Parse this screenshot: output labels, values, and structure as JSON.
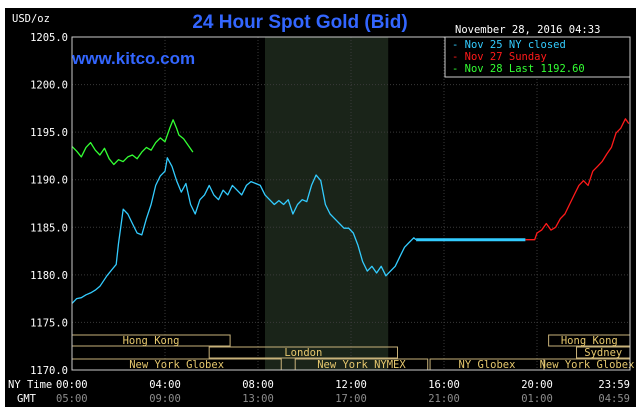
{
  "chart_data": {
    "type": "line",
    "title": "24 Hour Spot Gold (Bid)",
    "brand": "www.kitco.com",
    "units_label": "USD/oz",
    "timestamp": "November 28, 2016 04:33",
    "ylim": [
      1170,
      1205
    ],
    "y_ticks": [
      "1205.0",
      "1200.0",
      "1195.0",
      "1190.0",
      "1185.0",
      "1180.0",
      "1175.0",
      "1170.0"
    ],
    "x_tick_labels_ny": [
      "00:00",
      "04:00",
      "08:00",
      "12:00",
      "16:00",
      "20:00",
      "23:59"
    ],
    "x_tick_labels_gmt": [
      "05:00",
      "09:00",
      "13:00",
      "17:00",
      "21:00",
      "01:00",
      "04:59"
    ],
    "x_axis_ny_label": "NY Time",
    "x_axis_gmt_label": "GMT",
    "xlim_hours": [
      0,
      24
    ],
    "shaded_session_hours": [
      8.3,
      13.6
    ],
    "legend": [
      {
        "label": "Nov 25 NY closed",
        "color": "#33ccff"
      },
      {
        "label": "Nov 27 Sunday",
        "color": "#ff1a1a"
      },
      {
        "label": "Nov 28 Last 1192.60",
        "color": "#33ff33"
      }
    ],
    "series": [
      {
        "key": "green",
        "color": "#33ff33",
        "points": [
          [
            0.0,
            1193.5
          ],
          [
            0.2,
            1193.0
          ],
          [
            0.4,
            1192.4
          ],
          [
            0.6,
            1193.4
          ],
          [
            0.8,
            1193.9
          ],
          [
            1.0,
            1193.1
          ],
          [
            1.2,
            1192.6
          ],
          [
            1.4,
            1193.3
          ],
          [
            1.6,
            1192.2
          ],
          [
            1.8,
            1191.6
          ],
          [
            2.0,
            1192.1
          ],
          [
            2.2,
            1191.9
          ],
          [
            2.4,
            1192.4
          ],
          [
            2.6,
            1192.6
          ],
          [
            2.8,
            1192.2
          ],
          [
            3.0,
            1192.9
          ],
          [
            3.2,
            1193.4
          ],
          [
            3.4,
            1193.1
          ],
          [
            3.6,
            1193.9
          ],
          [
            3.8,
            1194.4
          ],
          [
            4.0,
            1194.0
          ],
          [
            4.2,
            1195.4
          ],
          [
            4.35,
            1196.3
          ],
          [
            4.5,
            1195.4
          ],
          [
            4.6,
            1194.7
          ],
          [
            4.8,
            1194.3
          ],
          [
            5.0,
            1193.6
          ],
          [
            5.2,
            1192.9
          ]
        ]
      },
      {
        "key": "blue",
        "color": "#33ccff",
        "points": [
          [
            0.0,
            1177.0
          ],
          [
            0.2,
            1177.5
          ],
          [
            0.4,
            1177.6
          ],
          [
            0.6,
            1177.9
          ],
          [
            0.8,
            1178.1
          ],
          [
            1.0,
            1178.4
          ],
          [
            1.2,
            1178.8
          ],
          [
            1.5,
            1179.9
          ],
          [
            1.7,
            1180.5
          ],
          [
            1.9,
            1181.1
          ],
          [
            2.0,
            1183.3
          ],
          [
            2.2,
            1186.9
          ],
          [
            2.4,
            1186.4
          ],
          [
            2.6,
            1185.4
          ],
          [
            2.8,
            1184.4
          ],
          [
            3.0,
            1184.2
          ],
          [
            3.2,
            1185.9
          ],
          [
            3.4,
            1187.4
          ],
          [
            3.6,
            1189.4
          ],
          [
            3.8,
            1190.4
          ],
          [
            4.0,
            1190.9
          ],
          [
            4.1,
            1192.3
          ],
          [
            4.3,
            1191.4
          ],
          [
            4.5,
            1189.9
          ],
          [
            4.7,
            1188.7
          ],
          [
            4.9,
            1189.6
          ],
          [
            5.1,
            1187.4
          ],
          [
            5.3,
            1186.4
          ],
          [
            5.5,
            1187.9
          ],
          [
            5.7,
            1188.4
          ],
          [
            5.9,
            1189.4
          ],
          [
            6.1,
            1188.4
          ],
          [
            6.3,
            1187.9
          ],
          [
            6.5,
            1188.9
          ],
          [
            6.7,
            1188.4
          ],
          [
            6.9,
            1189.4
          ],
          [
            7.1,
            1188.9
          ],
          [
            7.3,
            1188.4
          ],
          [
            7.5,
            1189.4
          ],
          [
            7.7,
            1189.8
          ],
          [
            7.9,
            1189.6
          ],
          [
            8.1,
            1189.4
          ],
          [
            8.3,
            1188.4
          ],
          [
            8.5,
            1187.9
          ],
          [
            8.7,
            1187.4
          ],
          [
            8.9,
            1187.8
          ],
          [
            9.1,
            1187.4
          ],
          [
            9.3,
            1187.9
          ],
          [
            9.5,
            1186.4
          ],
          [
            9.7,
            1187.4
          ],
          [
            9.9,
            1187.9
          ],
          [
            10.1,
            1187.7
          ],
          [
            10.3,
            1189.4
          ],
          [
            10.5,
            1190.5
          ],
          [
            10.7,
            1189.9
          ],
          [
            10.9,
            1187.4
          ],
          [
            11.1,
            1186.4
          ],
          [
            11.3,
            1185.9
          ],
          [
            11.5,
            1185.4
          ],
          [
            11.7,
            1184.9
          ],
          [
            11.9,
            1184.9
          ],
          [
            12.1,
            1184.4
          ],
          [
            12.3,
            1183.1
          ],
          [
            12.5,
            1181.4
          ],
          [
            12.7,
            1180.4
          ],
          [
            12.9,
            1180.9
          ],
          [
            13.1,
            1180.2
          ],
          [
            13.3,
            1180.9
          ],
          [
            13.5,
            1179.9
          ],
          [
            13.7,
            1180.4
          ],
          [
            13.9,
            1180.9
          ],
          [
            14.1,
            1181.9
          ],
          [
            14.3,
            1182.9
          ],
          [
            14.5,
            1183.4
          ],
          [
            14.7,
            1183.9
          ],
          [
            14.8,
            1183.7
          ]
        ]
      },
      {
        "key": "flat",
        "color": "#33ccff",
        "width": 3,
        "points": [
          [
            14.8,
            1183.7
          ],
          [
            19.5,
            1183.7
          ]
        ]
      },
      {
        "key": "red",
        "color": "#ff1a1a",
        "points": [
          [
            19.5,
            1183.7
          ],
          [
            19.9,
            1183.7
          ],
          [
            20.0,
            1184.4
          ],
          [
            20.2,
            1184.7
          ],
          [
            20.4,
            1185.4
          ],
          [
            20.6,
            1184.7
          ],
          [
            20.8,
            1185.0
          ],
          [
            21.0,
            1185.9
          ],
          [
            21.2,
            1186.4
          ],
          [
            21.4,
            1187.4
          ],
          [
            21.6,
            1188.4
          ],
          [
            21.8,
            1189.4
          ],
          [
            22.0,
            1189.9
          ],
          [
            22.2,
            1189.4
          ],
          [
            22.4,
            1190.9
          ],
          [
            22.6,
            1191.4
          ],
          [
            22.8,
            1191.9
          ],
          [
            23.0,
            1192.7
          ],
          [
            23.2,
            1193.4
          ],
          [
            23.4,
            1194.9
          ],
          [
            23.6,
            1195.4
          ],
          [
            23.8,
            1196.4
          ],
          [
            23.95,
            1195.9
          ]
        ]
      }
    ],
    "sessions": [
      {
        "label": "Hong Kong",
        "row": 1,
        "start": 0.0,
        "end": 6.8
      },
      {
        "label": "London",
        "row": 2,
        "start": 5.9,
        "end": 14.0
      },
      {
        "label": "New York Globex",
        "row": 3,
        "start": 0.0,
        "end": 9.0
      },
      {
        "label": "New York NYMEX",
        "row": 3,
        "start": 9.6,
        "end": 15.3
      },
      {
        "label": "NY Globex",
        "row": 3,
        "start": 15.4,
        "end": 20.3
      },
      {
        "label": "Hong Kong",
        "row": 1,
        "start": 20.5,
        "end": 24.0
      },
      {
        "label": "Sydney",
        "row": 2,
        "start": 21.7,
        "end": 24.0
      },
      {
        "label": "New York Globex",
        "row": 3,
        "start": 20.3,
        "end": 24.0
      }
    ]
  }
}
